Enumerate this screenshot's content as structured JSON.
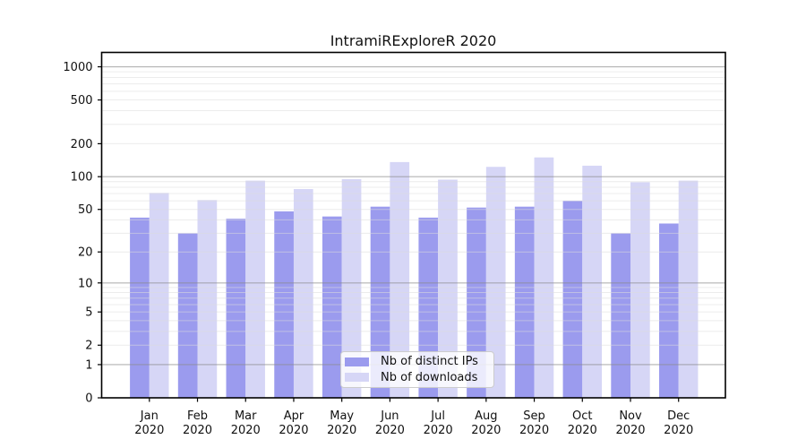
{
  "chart_data": {
    "type": "bar",
    "title": "IntramiRExploreR 2020",
    "categories": [
      "Jan",
      "Feb",
      "Mar",
      "Apr",
      "May",
      "Jun",
      "Jul",
      "Aug",
      "Sep",
      "Oct",
      "Nov",
      "Dec"
    ],
    "category_year": "2020",
    "series": [
      {
        "name": "Nb of distinct IPs",
        "color": "#9b9bee",
        "values": [
          42,
          30,
          41,
          48,
          43,
          53,
          42,
          52,
          53,
          60,
          30,
          37
        ]
      },
      {
        "name": "Nb of downloads",
        "color": "#d6d6f6",
        "values": [
          71,
          61,
          92,
          77,
          95,
          136,
          94,
          123,
          150,
          126,
          89,
          92
        ]
      }
    ],
    "yscale": "log1p",
    "ylabel": "",
    "xlabel": "",
    "y_ticks": [
      0,
      1,
      2,
      5,
      10,
      20,
      50,
      100,
      200,
      500,
      1000
    ],
    "ylim": [
      0,
      1350
    ],
    "grid": {
      "major": [
        1,
        10,
        100,
        1000
      ],
      "minor": [
        2,
        3,
        4,
        5,
        6,
        7,
        8,
        9,
        20,
        30,
        40,
        50,
        60,
        70,
        80,
        90,
        200,
        300,
        400,
        500,
        600,
        700,
        800,
        900
      ]
    },
    "legend_position": "bottom-center"
  },
  "colors": {
    "background": "#ffffff",
    "axis": "#000000",
    "text": "#111111",
    "grid_major": "#8a8a8a",
    "grid_minor": "#dcdcdc",
    "legend_border": "#cccccc"
  }
}
